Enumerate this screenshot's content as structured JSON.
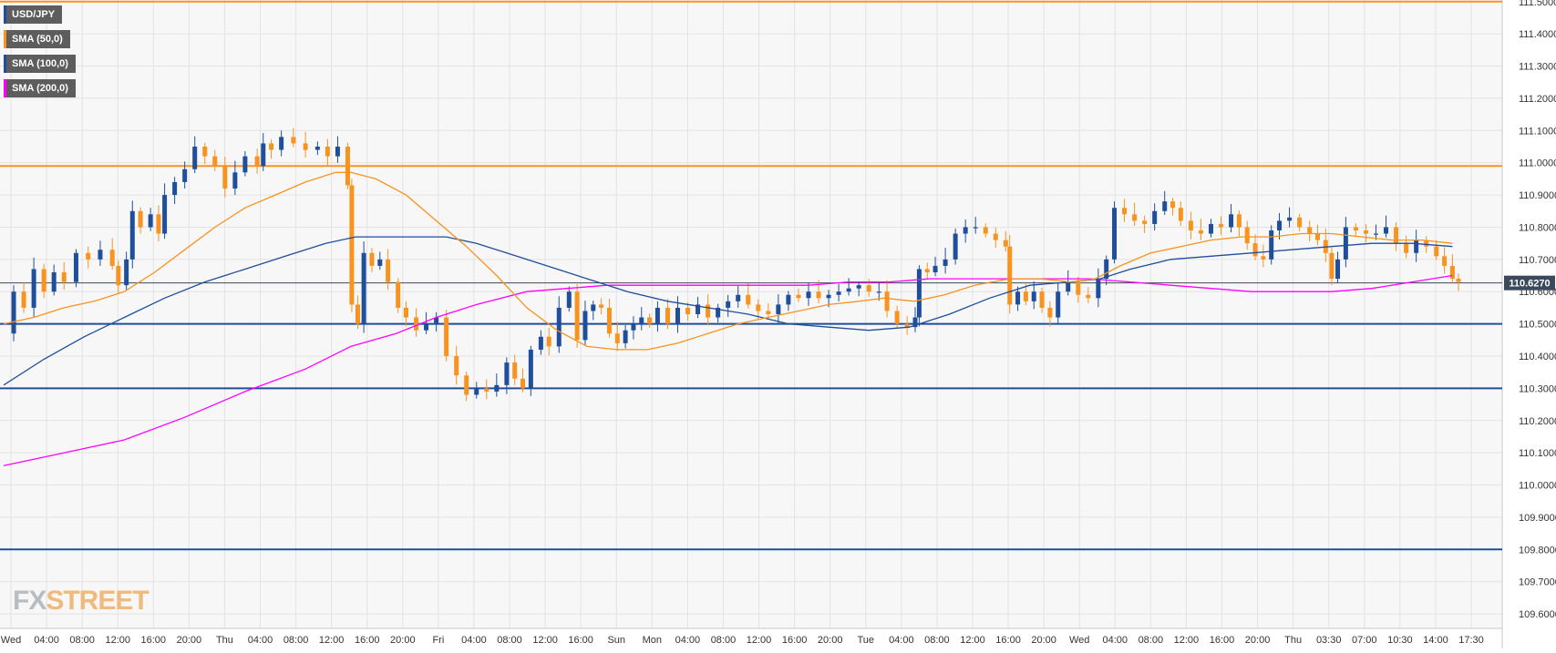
{
  "chart_data": {
    "type": "candlestick",
    "symbol": "USD/JPY",
    "legend": [
      {
        "label": "USD/JPY",
        "color": "#1f4e9b"
      },
      {
        "label": "SMA (50,0)",
        "color": "#f7931e"
      },
      {
        "label": "SMA (100,0)",
        "color": "#1f4e9b"
      },
      {
        "label": "SMA (200,0)",
        "color": "#ff00ff"
      }
    ],
    "y_range": [
      109.555,
      111.505
    ],
    "y_ticks": [
      "111.5000",
      "111.4000",
      "111.3000",
      "111.2000",
      "111.1000",
      "111.0000",
      "110.9000",
      "110.8000",
      "110.7000",
      "110.6000",
      "110.5000",
      "110.4000",
      "110.3000",
      "110.2000",
      "110.1000",
      "110.0000",
      "109.9000",
      "109.8000",
      "109.7000",
      "109.6000"
    ],
    "x_ticks": [
      "Wed",
      "04:00",
      "08:00",
      "12:00",
      "16:00",
      "20:00",
      "Thu",
      "04:00",
      "08:00",
      "12:00",
      "16:00",
      "20:00",
      "Fri",
      "04:00",
      "08:00",
      "12:00",
      "16:00",
      "Sun",
      "Mon",
      "04:00",
      "08:00",
      "12:00",
      "16:00",
      "20:00",
      "Tue",
      "04:00",
      "08:00",
      "12:00",
      "16:00",
      "20:00",
      "Wed",
      "04:00",
      "08:00",
      "12:00",
      "16:00",
      "20:00",
      "Thu",
      "03:30",
      "07:00",
      "10:30",
      "14:00",
      "17:30"
    ],
    "current_price": {
      "label": "110.6270",
      "value": 110.627
    },
    "horizontal_levels": [
      {
        "value": 111.5,
        "color": "#f7931e"
      },
      {
        "value": 110.99,
        "color": "#f7931e"
      },
      {
        "value": 110.5,
        "color": "#1f4e9b"
      },
      {
        "value": 110.3,
        "color": "#1f4e9b"
      },
      {
        "value": 109.8,
        "color": "#1f4e9b"
      }
    ],
    "price_path": [
      [
        0,
        110.47
      ],
      [
        10,
        110.6
      ],
      [
        20,
        110.55
      ],
      [
        30,
        110.67
      ],
      [
        40,
        110.6
      ],
      [
        50,
        110.66
      ],
      [
        60,
        110.63
      ],
      [
        72,
        110.72
      ],
      [
        84,
        110.7
      ],
      [
        96,
        110.73
      ],
      [
        108,
        110.68
      ],
      [
        114,
        110.62
      ],
      [
        122,
        110.7
      ],
      [
        128,
        110.85
      ],
      [
        136,
        110.8
      ],
      [
        146,
        110.84
      ],
      [
        154,
        110.78
      ],
      [
        160,
        110.9
      ],
      [
        170,
        110.94
      ],
      [
        180,
        110.98
      ],
      [
        190,
        111.05
      ],
      [
        200,
        111.02
      ],
      [
        210,
        110.99
      ],
      [
        220,
        110.92
      ],
      [
        230,
        110.97
      ],
      [
        240,
        111.02
      ],
      [
        252,
        110.99
      ],
      [
        258,
        111.06
      ],
      [
        266,
        111.04
      ],
      [
        276,
        111.08
      ],
      [
        288,
        111.06
      ],
      [
        300,
        111.04
      ],
      [
        312,
        111.05
      ],
      [
        322,
        111.02
      ],
      [
        332,
        111.05
      ],
      [
        342,
        110.93
      ],
      [
        346,
        110.56
      ],
      [
        352,
        110.5
      ],
      [
        358,
        110.72
      ],
      [
        366,
        110.68
      ],
      [
        374,
        110.7
      ],
      [
        382,
        110.63
      ],
      [
        392,
        110.55
      ],
      [
        400,
        110.52
      ],
      [
        410,
        110.48
      ],
      [
        420,
        110.5
      ],
      [
        430,
        110.52
      ],
      [
        440,
        110.4
      ],
      [
        450,
        110.34
      ],
      [
        460,
        110.28
      ],
      [
        470,
        110.3
      ],
      [
        480,
        110.29
      ],
      [
        490,
        110.31
      ],
      [
        500,
        110.38
      ],
      [
        508,
        110.33
      ],
      [
        516,
        110.3
      ],
      [
        524,
        110.42
      ],
      [
        534,
        110.46
      ],
      [
        542,
        110.43
      ],
      [
        552,
        110.55
      ],
      [
        562,
        110.6
      ],
      [
        570,
        110.45
      ],
      [
        578,
        110.54
      ],
      [
        586,
        110.56
      ],
      [
        594,
        110.55
      ],
      [
        602,
        110.47
      ],
      [
        610,
        110.44
      ],
      [
        618,
        110.48
      ],
      [
        626,
        110.5
      ],
      [
        634,
        110.52
      ],
      [
        642,
        110.5
      ],
      [
        650,
        110.55
      ],
      [
        660,
        110.5
      ],
      [
        670,
        110.55
      ],
      [
        680,
        110.53
      ],
      [
        690,
        110.56
      ],
      [
        700,
        110.52
      ],
      [
        710,
        110.55
      ],
      [
        720,
        110.57
      ],
      [
        730,
        110.59
      ],
      [
        740,
        110.56
      ],
      [
        750,
        110.54
      ],
      [
        760,
        110.53
      ],
      [
        770,
        110.56
      ],
      [
        780,
        110.59
      ],
      [
        790,
        110.58
      ],
      [
        800,
        110.6
      ],
      [
        810,
        110.58
      ],
      [
        820,
        110.59
      ],
      [
        830,
        110.6
      ],
      [
        840,
        110.61
      ],
      [
        850,
        110.62
      ],
      [
        860,
        110.6
      ],
      [
        870,
        110.6
      ],
      [
        878,
        110.54
      ],
      [
        888,
        110.5
      ],
      [
        898,
        110.49
      ],
      [
        906,
        110.52
      ],
      [
        910,
        110.67
      ],
      [
        918,
        110.66
      ],
      [
        926,
        110.68
      ],
      [
        936,
        110.7
      ],
      [
        946,
        110.78
      ],
      [
        956,
        110.8
      ],
      [
        966,
        110.8
      ],
      [
        976,
        110.78
      ],
      [
        986,
        110.76
      ],
      [
        996,
        110.74
      ],
      [
        1000,
        110.56
      ],
      [
        1008,
        110.6
      ],
      [
        1016,
        110.57
      ],
      [
        1024,
        110.6
      ],
      [
        1032,
        110.55
      ],
      [
        1040,
        110.52
      ],
      [
        1048,
        110.6
      ],
      [
        1058,
        110.63
      ],
      [
        1068,
        110.59
      ],
      [
        1078,
        110.58
      ],
      [
        1088,
        110.64
      ],
      [
        1096,
        110.7
      ],
      [
        1104,
        110.86
      ],
      [
        1114,
        110.84
      ],
      [
        1124,
        110.82
      ],
      [
        1134,
        110.81
      ],
      [
        1144,
        110.85
      ],
      [
        1154,
        110.88
      ],
      [
        1162,
        110.86
      ],
      [
        1170,
        110.82
      ],
      [
        1180,
        110.79
      ],
      [
        1190,
        110.78
      ],
      [
        1200,
        110.81
      ],
      [
        1210,
        110.8
      ],
      [
        1220,
        110.84
      ],
      [
        1228,
        110.8
      ],
      [
        1236,
        110.75
      ],
      [
        1244,
        110.71
      ],
      [
        1252,
        110.7
      ],
      [
        1260,
        110.79
      ],
      [
        1268,
        110.82
      ],
      [
        1278,
        110.83
      ],
      [
        1288,
        110.8
      ],
      [
        1298,
        110.78
      ],
      [
        1306,
        110.76
      ],
      [
        1314,
        110.72
      ],
      [
        1320,
        110.64
      ],
      [
        1326,
        110.7
      ],
      [
        1334,
        110.8
      ],
      [
        1344,
        110.79
      ],
      [
        1354,
        110.78
      ],
      [
        1364,
        110.78
      ],
      [
        1374,
        110.8
      ],
      [
        1384,
        110.75
      ],
      [
        1394,
        110.72
      ],
      [
        1404,
        110.76
      ],
      [
        1414,
        110.74
      ],
      [
        1424,
        110.71
      ],
      [
        1432,
        110.68
      ],
      [
        1440,
        110.64
      ],
      [
        1446,
        110.63
      ]
    ],
    "sma50": [
      [
        0,
        110.5
      ],
      [
        30,
        110.52
      ],
      [
        60,
        110.55
      ],
      [
        90,
        110.57
      ],
      [
        120,
        110.6
      ],
      [
        150,
        110.66
      ],
      [
        180,
        110.73
      ],
      [
        210,
        110.8
      ],
      [
        240,
        110.86
      ],
      [
        270,
        110.9
      ],
      [
        300,
        110.94
      ],
      [
        330,
        110.97
      ],
      [
        345,
        110.97
      ],
      [
        370,
        110.95
      ],
      [
        400,
        110.9
      ],
      [
        430,
        110.82
      ],
      [
        460,
        110.74
      ],
      [
        490,
        110.65
      ],
      [
        520,
        110.55
      ],
      [
        550,
        110.48
      ],
      [
        580,
        110.43
      ],
      [
        610,
        110.42
      ],
      [
        640,
        110.42
      ],
      [
        670,
        110.44
      ],
      [
        700,
        110.47
      ],
      [
        730,
        110.5
      ],
      [
        760,
        110.52
      ],
      [
        790,
        110.54
      ],
      [
        820,
        110.56
      ],
      [
        850,
        110.57
      ],
      [
        875,
        110.58
      ],
      [
        905,
        110.57
      ],
      [
        935,
        110.59
      ],
      [
        965,
        110.62
      ],
      [
        1000,
        110.64
      ],
      [
        1030,
        110.64
      ],
      [
        1060,
        110.63
      ],
      [
        1085,
        110.64
      ],
      [
        1110,
        110.68
      ],
      [
        1140,
        110.72
      ],
      [
        1170,
        110.74
      ],
      [
        1200,
        110.76
      ],
      [
        1230,
        110.77
      ],
      [
        1260,
        110.77
      ],
      [
        1290,
        110.78
      ],
      [
        1320,
        110.78
      ],
      [
        1350,
        110.77
      ],
      [
        1380,
        110.76
      ],
      [
        1410,
        110.76
      ],
      [
        1440,
        110.75
      ]
    ],
    "sma100": [
      [
        0,
        110.31
      ],
      [
        40,
        110.39
      ],
      [
        80,
        110.46
      ],
      [
        120,
        110.52
      ],
      [
        160,
        110.58
      ],
      [
        200,
        110.63
      ],
      [
        240,
        110.67
      ],
      [
        280,
        110.71
      ],
      [
        320,
        110.75
      ],
      [
        350,
        110.77
      ],
      [
        380,
        110.77
      ],
      [
        410,
        110.77
      ],
      [
        440,
        110.77
      ],
      [
        470,
        110.75
      ],
      [
        500,
        110.72
      ],
      [
        540,
        110.68
      ],
      [
        580,
        110.64
      ],
      [
        620,
        110.6
      ],
      [
        660,
        110.57
      ],
      [
        700,
        110.55
      ],
      [
        740,
        110.53
      ],
      [
        780,
        110.5
      ],
      [
        820,
        110.49
      ],
      [
        860,
        110.48
      ],
      [
        900,
        110.49
      ],
      [
        940,
        110.53
      ],
      [
        980,
        110.58
      ],
      [
        1020,
        110.62
      ],
      [
        1060,
        110.63
      ],
      [
        1090,
        110.64
      ],
      [
        1120,
        110.67
      ],
      [
        1160,
        110.7
      ],
      [
        1200,
        110.71
      ],
      [
        1240,
        110.72
      ],
      [
        1280,
        110.73
      ],
      [
        1320,
        110.74
      ],
      [
        1360,
        110.75
      ],
      [
        1400,
        110.75
      ],
      [
        1440,
        110.74
      ]
    ],
    "sma200": [
      [
        0,
        110.06
      ],
      [
        60,
        110.1
      ],
      [
        120,
        110.14
      ],
      [
        180,
        110.21
      ],
      [
        240,
        110.29
      ],
      [
        300,
        110.36
      ],
      [
        345,
        110.43
      ],
      [
        390,
        110.47
      ],
      [
        430,
        110.52
      ],
      [
        470,
        110.56
      ],
      [
        520,
        110.6
      ],
      [
        560,
        110.61
      ],
      [
        600,
        110.62
      ],
      [
        640,
        110.62
      ],
      [
        680,
        110.62
      ],
      [
        720,
        110.62
      ],
      [
        760,
        110.62
      ],
      [
        800,
        110.62
      ],
      [
        840,
        110.63
      ],
      [
        880,
        110.63
      ],
      [
        920,
        110.64
      ],
      [
        960,
        110.64
      ],
      [
        1000,
        110.64
      ],
      [
        1040,
        110.64
      ],
      [
        1080,
        110.64
      ],
      [
        1120,
        110.63
      ],
      [
        1160,
        110.62
      ],
      [
        1200,
        110.61
      ],
      [
        1240,
        110.6
      ],
      [
        1280,
        110.6
      ],
      [
        1320,
        110.6
      ],
      [
        1360,
        110.61
      ],
      [
        1400,
        110.63
      ],
      [
        1440,
        110.65
      ]
    ],
    "watermark": {
      "fx": "FX",
      "street": "STREET"
    }
  }
}
